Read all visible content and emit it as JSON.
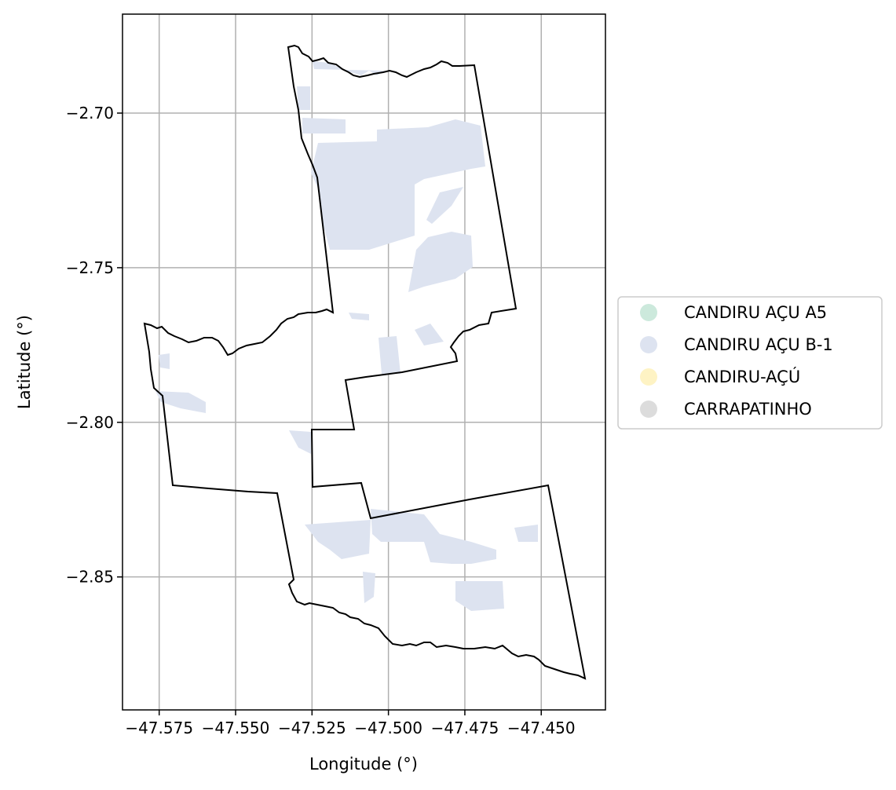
{
  "map": {
    "xlabel": "Longitude (°)",
    "ylabel": "Latitude (°)",
    "x_ticks": [
      -47.575,
      -47.55,
      -47.525,
      -47.5,
      -47.475,
      -47.45
    ],
    "y_ticks": [
      -2.7,
      -2.75,
      -2.8,
      -2.85
    ],
    "xlim": [
      -47.587,
      -47.429
    ],
    "ylim": [
      -2.893,
      -2.668
    ],
    "grid": true,
    "boundary_color": "#000000"
  },
  "legend": {
    "placement": "right",
    "items": [
      {
        "label": "CANDIRU AÇU A5",
        "color": "#cce9dc"
      },
      {
        "label": "CANDIRU AÇU B-1",
        "color": "#dde3f0"
      },
      {
        "label": "CANDIRU-AÇÚ",
        "color": "#fef3c4"
      },
      {
        "label": "CARRAPATINHO",
        "color": "#dcdcdc"
      }
    ]
  }
}
